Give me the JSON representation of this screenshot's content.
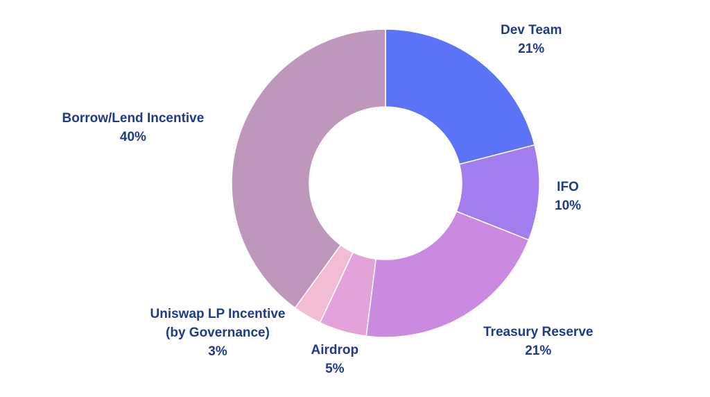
{
  "chart_data": {
    "type": "pie",
    "variant": "donut",
    "title": "",
    "slices": [
      {
        "label": "Dev Team",
        "label_lines": [
          "Dev Team"
        ],
        "value": 21,
        "display": "21%",
        "color": "#5b73f6"
      },
      {
        "label": "IFO",
        "label_lines": [
          "IFO"
        ],
        "value": 10,
        "display": "10%",
        "color": "#a27dee"
      },
      {
        "label": "Treasury Reserve",
        "label_lines": [
          "Treasury Reserve"
        ],
        "value": 21,
        "display": "21%",
        "color": "#c98adf"
      },
      {
        "label": "Airdrop",
        "label_lines": [
          "Airdrop"
        ],
        "value": 5,
        "display": "5%",
        "color": "#e3a2da"
      },
      {
        "label": "Uniswap LP Incentive (by Governance)",
        "label_lines": [
          "Uniswap LP Incentive",
          "(by Governance)"
        ],
        "value": 3,
        "display": "3%",
        "color": "#f2bcd5"
      },
      {
        "label": "Borrow/Lend Incentive",
        "label_lines": [
          "Borrow/Lend Incentive"
        ],
        "value": 40,
        "display": "40%",
        "color": "#c097bc"
      }
    ],
    "start_angle": "12 o'clock",
    "direction": "clockwise",
    "legend": "none",
    "label_color": "#1f3a8a"
  }
}
